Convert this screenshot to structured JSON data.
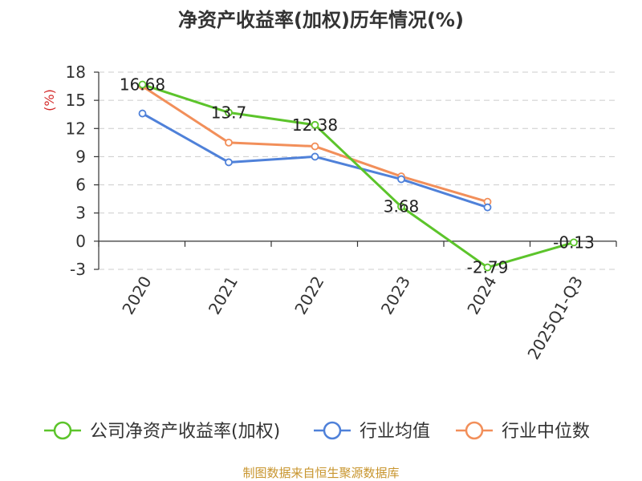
{
  "chart_data": {
    "type": "line",
    "title": "净资产收益率(加权)历年情况(%)",
    "ylabel": "(%)",
    "categories": [
      "2020",
      "2021",
      "2022",
      "2023",
      "2024",
      "2025Q1-Q3"
    ],
    "ylim": [
      -3,
      18
    ],
    "yticks": [
      -3,
      0,
      3,
      6,
      9,
      12,
      15,
      18
    ],
    "grid": true,
    "legend_position": "bottom",
    "series": [
      {
        "name": "公司净资产收益率(加权)",
        "color": "#5cc42b",
        "values": [
          16.68,
          13.7,
          12.38,
          3.68,
          -2.79,
          -0.13
        ],
        "labels": [
          "16.68",
          "13.7",
          "12.38",
          "3.68",
          "-2.79",
          "-0.13"
        ]
      },
      {
        "name": "行业均值",
        "color": "#4f81d9",
        "values": [
          13.6,
          8.4,
          9.0,
          6.6,
          3.6,
          null
        ]
      },
      {
        "name": "行业中位数",
        "color": "#f28f5a",
        "values": [
          16.5,
          10.5,
          10.1,
          6.9,
          4.2,
          null
        ]
      }
    ],
    "source": "制图数据来自恒生聚源数据库"
  }
}
